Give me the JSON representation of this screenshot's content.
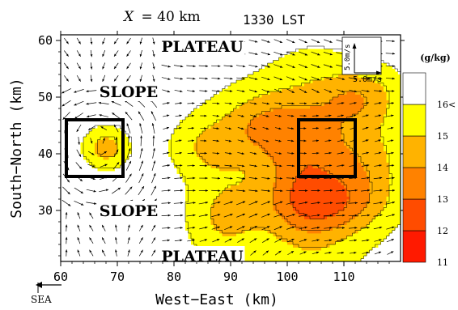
{
  "chart_data": {
    "type": "heatmap",
    "title": "X = 40 km",
    "title_var": "X",
    "title_eq": "= 40 km",
    "subtitle": "1330 LST",
    "xlabel": "West−East (km)",
    "ylabel": "South−North (km)",
    "xlim": [
      60,
      120
    ],
    "ylim": [
      21,
      61
    ],
    "xticks": [
      60,
      70,
      80,
      90,
      100,
      110
    ],
    "yticks": [
      30,
      40,
      50,
      60
    ],
    "grid": false,
    "colorbar": {
      "unit": "(g/kg)",
      "levels": [
        11,
        12,
        13,
        14,
        15,
        16
      ],
      "labels": [
        "11",
        "12",
        "13",
        "14",
        "15",
        "16<"
      ],
      "colors": [
        "#ff1a00",
        "#ff4c00",
        "#ff8200",
        "#ffb300",
        "#ffff00",
        "#ffffff"
      ],
      "position": "right"
    },
    "regions": [
      {
        "label": "PLATEAU",
        "x": 85,
        "y": 59
      },
      {
        "label": "SLOPE",
        "x": 72,
        "y": 51
      },
      {
        "label": "SLOPE",
        "x": 72,
        "y": 30
      },
      {
        "label": "PLATEAU",
        "x": 85,
        "y": 22
      }
    ],
    "boxes": [
      {
        "x": [
          61,
          71
        ],
        "y": [
          36,
          46
        ]
      },
      {
        "x": [
          102,
          112
        ],
        "y": [
          36,
          46
        ]
      }
    ],
    "reference_vector": "5.0m/s",
    "reference_vector_label": "5.0m/s",
    "direction_note": "SEA"
  }
}
